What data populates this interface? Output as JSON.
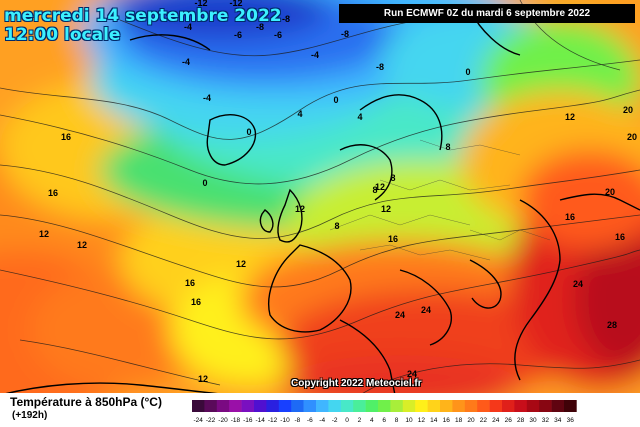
{
  "header": {
    "date": "mercredi 14 septembre 2022",
    "time": "12:00 locale",
    "run": "Run ECMWF 0Z du mardi 6 septembre 2022"
  },
  "footer": {
    "copyright": "Copyright 2022 Meteociel.fr",
    "legend_title": "Température à 850hPa (°C)",
    "legend_subtitle": "(+192h)"
  },
  "legend_scale": {
    "values": [
      "-24",
      "-22",
      "-20",
      "-18",
      "-16",
      "-14",
      "-12",
      "-10",
      "-8",
      "-6",
      "-4",
      "-2",
      "0",
      "2",
      "4",
      "6",
      "8",
      "10",
      "12",
      "14",
      "16",
      "18",
      "20",
      "22",
      "24",
      "26",
      "28",
      "30",
      "32",
      "34",
      "36"
    ],
    "colors": [
      "#3a0a3a",
      "#5a0a5a",
      "#7a0a82",
      "#9a10a8",
      "#7a10c0",
      "#5010d0",
      "#2a20e0",
      "#1840ff",
      "#1e6af5",
      "#3090ff",
      "#40b6ff",
      "#44d6f0",
      "#48e8c8",
      "#4aee9a",
      "#50f068",
      "#70f04a",
      "#a8ee3a",
      "#d8ee28",
      "#fff01a",
      "#ffd31a",
      "#ffb41a",
      "#ff941a",
      "#ff7a1a",
      "#ff5a1a",
      "#f5381a",
      "#e0201a",
      "#c80e1a",
      "#a80814",
      "#880612",
      "#600410",
      "#400208"
    ]
  },
  "isotherm_labels": [
    {
      "text": "-12"
    },
    {
      "text": "-12"
    },
    {
      "text": "-8"
    },
    {
      "text": "-8"
    },
    {
      "text": "-8"
    },
    {
      "text": "-8"
    },
    {
      "text": "-6"
    },
    {
      "text": "-6"
    },
    {
      "text": "-4"
    },
    {
      "text": "-4"
    },
    {
      "text": "-4"
    },
    {
      "text": "-4"
    },
    {
      "text": "-4"
    },
    {
      "text": "0"
    },
    {
      "text": "0"
    },
    {
      "text": "0"
    },
    {
      "text": "0"
    },
    {
      "text": "4"
    },
    {
      "text": "4"
    },
    {
      "text": "8"
    },
    {
      "text": "8"
    },
    {
      "text": "8"
    },
    {
      "text": "8"
    },
    {
      "text": "12"
    },
    {
      "text": "12"
    },
    {
      "text": "12"
    },
    {
      "text": "12"
    },
    {
      "text": "12"
    },
    {
      "text": "12"
    },
    {
      "text": "12"
    },
    {
      "text": "16"
    },
    {
      "text": "16"
    },
    {
      "text": "16"
    },
    {
      "text": "16"
    },
    {
      "text": "16"
    },
    {
      "text": "16"
    },
    {
      "text": "16"
    },
    {
      "text": "20"
    },
    {
      "text": "20"
    },
    {
      "text": "20"
    },
    {
      "text": "24"
    },
    {
      "text": "24"
    },
    {
      "text": "24"
    },
    {
      "text": "24"
    },
    {
      "text": "28"
    },
    {
      "text": "12"
    }
  ],
  "colors": {
    "cold_core": "#1e3ccc",
    "mid_green": "#54e26e",
    "warm_red": "#e8281c",
    "background_frame": "#ffffff"
  }
}
